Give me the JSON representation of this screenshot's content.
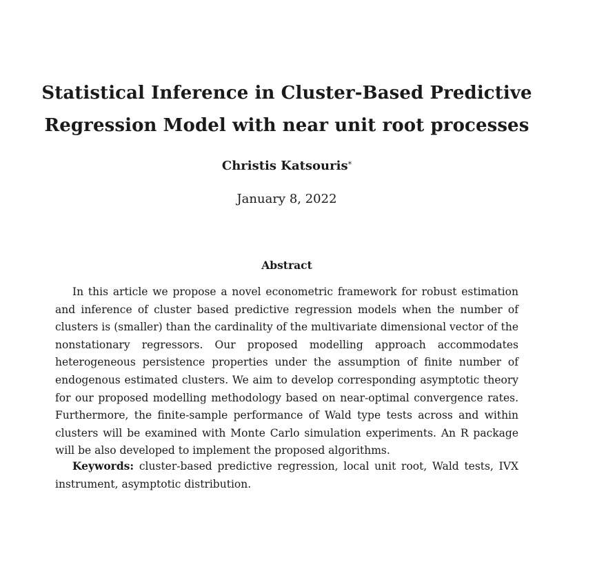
{
  "paper": {
    "title_line1": "Statistical Inference in Cluster-Based Predictive",
    "title_line2": "Regression Model with near unit root processes",
    "author": "Christis Katsouris",
    "author_mark": "*",
    "date": "January 8, 2022",
    "abstract_heading": "Abstract",
    "abstract_text": "In this article we propose a novel econometric framework for robust estimation and inference of cluster based predictive regression models when the number of clusters is (smaller) than the cardinality of the multivariate dimensional vector of the nonstationary regressors. Our proposed modelling approach accommodates heterogeneous persistence properties under the assumption of finite number of endogenous estimated clusters. We aim to develop corresponding asymptotic theory for our proposed modelling methodology based on near-optimal convergence rates. Furthermore, the finite-sample performance of Wald type tests across and within clusters will be examined with Monte Carlo simulation experiments. An R package will be also developed to implement the proposed algorithms.",
    "keywords_label": "Keywords:",
    "keywords_text": "cluster-based predictive regression, local unit root, Wald tests, IVX instrument, asymptotic distribution."
  }
}
